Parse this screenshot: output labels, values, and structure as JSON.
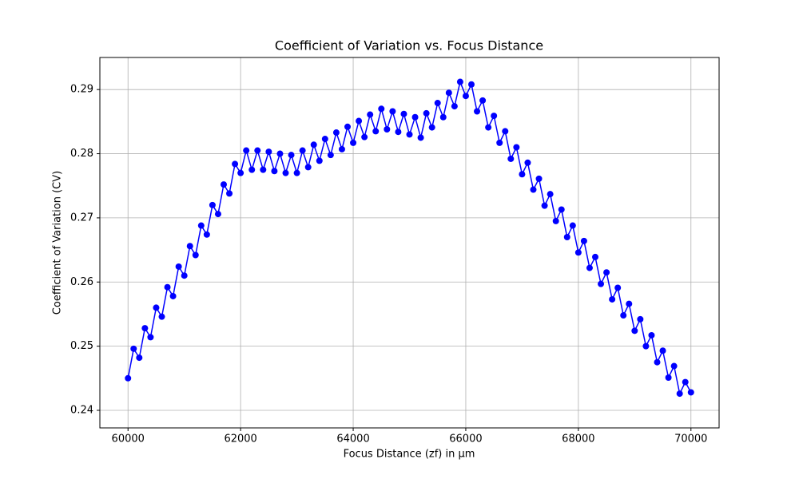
{
  "chart_data": {
    "type": "line",
    "title": "Coefficient of Variation vs. Focus Distance",
    "x_label": "Focus Distance (zf) in µm",
    "y_label": "Coefficient of Variation (CV)",
    "color": "#0000ff",
    "grid": true,
    "markers": true,
    "xlim": [
      59500,
      70500
    ],
    "ylim": [
      0.23726,
      0.295
    ],
    "xticks": [
      60000,
      62000,
      64000,
      66000,
      68000,
      70000
    ],
    "yticks": [
      0.24,
      0.25,
      0.26,
      0.27,
      0.28,
      0.29
    ],
    "x": [
      60000,
      60100,
      60200,
      60300,
      60400,
      60500,
      60600,
      60700,
      60800,
      60900,
      61000,
      61100,
      61200,
      61300,
      61400,
      61500,
      61600,
      61700,
      61800,
      61900,
      62000,
      62100,
      62200,
      62300,
      62400,
      62500,
      62600,
      62700,
      62800,
      62900,
      63000,
      63100,
      63200,
      63300,
      63400,
      63500,
      63600,
      63700,
      63800,
      63900,
      64000,
      64100,
      64200,
      64300,
      64400,
      64500,
      64600,
      64700,
      64800,
      64900,
      65000,
      65100,
      65200,
      65300,
      65400,
      65500,
      65600,
      65700,
      65800,
      65900,
      66000,
      66100,
      66200,
      66300,
      66400,
      66500,
      66600,
      66700,
      66800,
      66900,
      67000,
      67100,
      67200,
      67300,
      67400,
      67500,
      67600,
      67700,
      67800,
      67900,
      68000,
      68100,
      68200,
      68300,
      68400,
      68500,
      68600,
      68700,
      68800,
      68900,
      69000,
      69100,
      69200,
      69300,
      69400,
      69500,
      69600,
      69700,
      69800,
      69900,
      70000
    ],
    "values": [
      0.245,
      0.2496,
      0.2482,
      0.2528,
      0.2514,
      0.256,
      0.2546,
      0.2592,
      0.2578,
      0.2624,
      0.261,
      0.2656,
      0.2642,
      0.2688,
      0.2674,
      0.272,
      0.2706,
      0.2752,
      0.2738,
      0.2784,
      0.277,
      0.2805,
      0.2775,
      0.2805,
      0.2775,
      0.2803,
      0.2773,
      0.28,
      0.277,
      0.2798,
      0.277,
      0.2805,
      0.2779,
      0.2814,
      0.2789,
      0.2823,
      0.2798,
      0.2833,
      0.2807,
      0.2842,
      0.2817,
      0.2851,
      0.2826,
      0.2861,
      0.2835,
      0.287,
      0.2838,
      0.2866,
      0.2834,
      0.2862,
      0.283,
      0.2857,
      0.2825,
      0.2863,
      0.2841,
      0.2879,
      0.2857,
      0.2895,
      0.2874,
      0.2912,
      0.289,
      0.2908,
      0.2866,
      0.2883,
      0.2841,
      0.2859,
      0.2817,
      0.2835,
      0.2792,
      0.281,
      0.2768,
      0.2786,
      0.2744,
      0.2761,
      0.2719,
      0.2737,
      0.2695,
      0.2713,
      0.267,
      0.2688,
      0.2646,
      0.2664,
      0.2622,
      0.2639,
      0.2597,
      0.2615,
      0.2573,
      0.2591,
      0.2548,
      0.2566,
      0.2524,
      0.2542,
      0.25,
      0.2517,
      0.2475,
      0.2493,
      0.2451,
      0.2469,
      0.2426,
      0.2444,
      0.2428
    ]
  }
}
